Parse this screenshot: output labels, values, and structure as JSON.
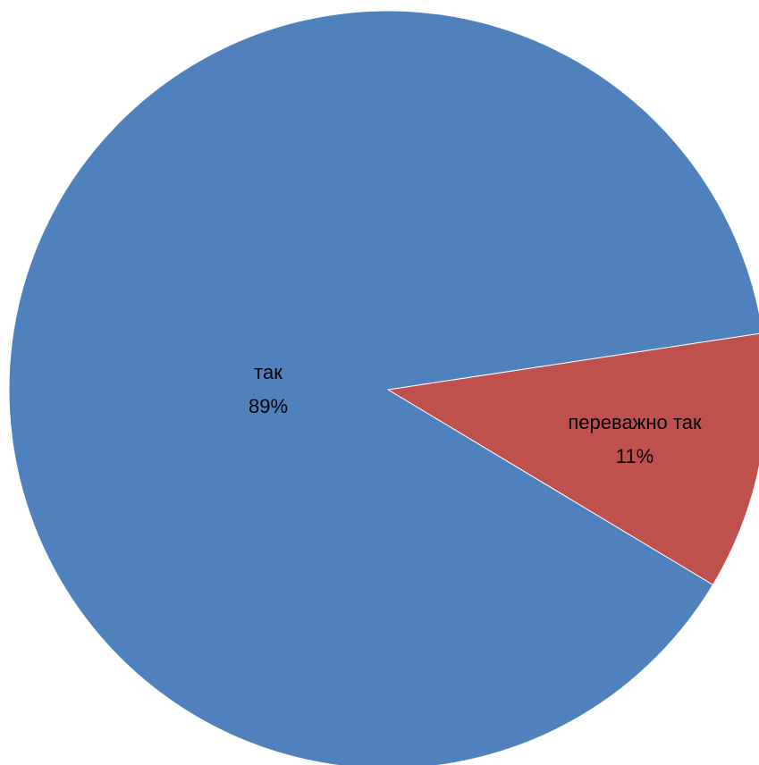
{
  "chart_data": {
    "type": "pie",
    "slices": [
      {
        "label": "так",
        "value": 89,
        "value_label": "89%",
        "color": "#4F81BD"
      },
      {
        "label": "переважно так",
        "value": 11,
        "value_label": "11%",
        "color": "#C0504D"
      }
    ],
    "legend": "none"
  }
}
